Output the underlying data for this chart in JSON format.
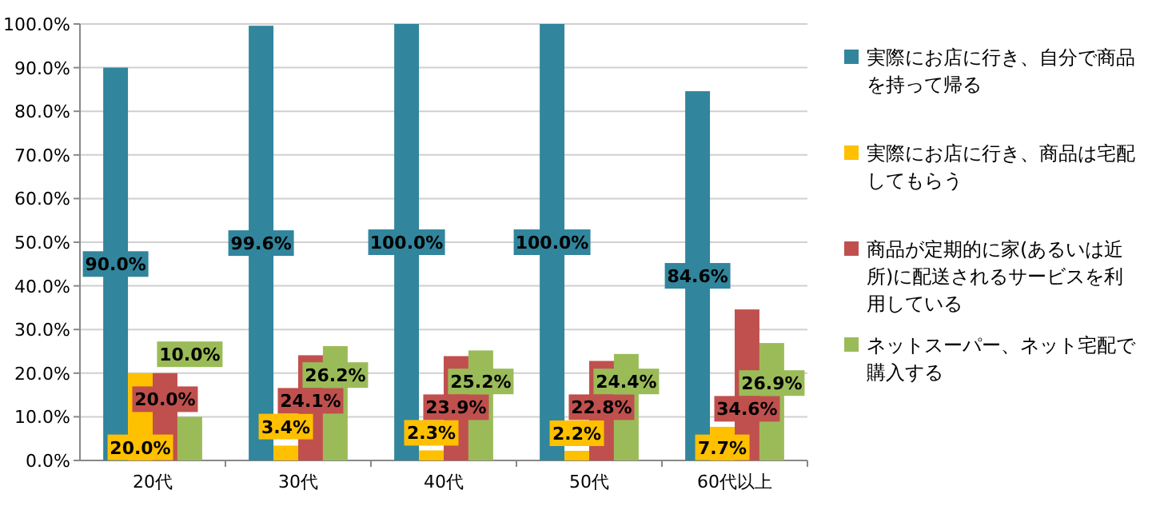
{
  "chart_data": {
    "type": "bar",
    "categories": [
      "20代",
      "30代",
      "40代",
      "50代",
      "60代以上"
    ],
    "series": [
      {
        "name": "実際にお店に行き、自分で商品を持って帰る",
        "color": "#31859c",
        "values": [
          90.0,
          99.6,
          100.0,
          100.0,
          84.6
        ],
        "value_labels": [
          "90.0%",
          "99.6%",
          "100.0%",
          "100.0%",
          "84.6%"
        ]
      },
      {
        "name": "実際にお店に行き、商品は宅配してもらう",
        "color": "#ffc000",
        "values": [
          20.0,
          3.4,
          2.3,
          2.2,
          7.7
        ],
        "value_labels": [
          "20.0%",
          "3.4%",
          "2.3%",
          "2.2%",
          "7.7%"
        ]
      },
      {
        "name": "商品が定期的に家(あるいは近所)に配送されるサービスを利用している",
        "color": "#c0504d",
        "values": [
          20.0,
          24.1,
          23.9,
          22.8,
          34.6
        ],
        "value_labels": [
          "20.0%",
          "24.1%",
          "23.9%",
          "22.8%",
          "34.6%"
        ]
      },
      {
        "name": "ネットスーパー、ネット宅配で購入する",
        "color": "#9bbb59",
        "values": [
          10.0,
          26.2,
          25.2,
          24.4,
          26.9
        ],
        "value_labels": [
          "10.0%",
          "26.2%",
          "25.2%",
          "24.4%",
          "26.9%"
        ]
      }
    ],
    "ylim": [
      0,
      100
    ],
    "yticks": [
      {
        "value": 0,
        "label": "0.0%"
      },
      {
        "value": 10,
        "label": "10.0%"
      },
      {
        "value": 20,
        "label": "20.0%"
      },
      {
        "value": 30,
        "label": "30.0%"
      },
      {
        "value": 40,
        "label": "40.0%"
      },
      {
        "value": 50,
        "label": "50.0%"
      },
      {
        "value": 60,
        "label": "60.0%"
      },
      {
        "value": 70,
        "label": "70.0%"
      },
      {
        "value": 80,
        "label": "80.0%"
      },
      {
        "value": 90,
        "label": "90.0%"
      },
      {
        "value": 100,
        "label": "100.0%"
      }
    ],
    "grid": true,
    "legend": "right"
  }
}
